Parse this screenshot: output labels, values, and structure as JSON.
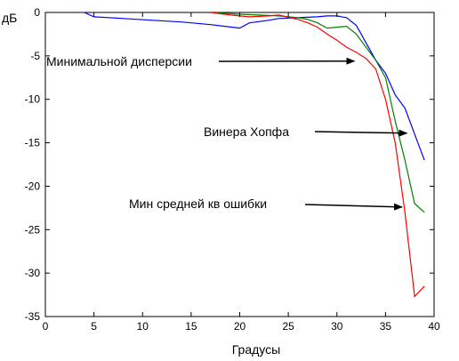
{
  "chart_data": {
    "type": "line",
    "title": "",
    "xlabel": "Градусы",
    "ylabel": "дБ",
    "xlim": [
      0,
      40
    ],
    "ylim": [
      -35,
      0
    ],
    "xticks": [
      0,
      5,
      10,
      15,
      20,
      25,
      30,
      35,
      40
    ],
    "yticks": [
      0,
      -5,
      -10,
      -15,
      -20,
      -25,
      -30,
      -35
    ],
    "grid": false,
    "series": [
      {
        "name": "Минимальной дисперсии",
        "color": "#0000ff",
        "x": [
          4,
          5,
          8,
          11,
          14,
          17,
          20,
          21,
          23,
          24,
          26,
          28,
          29,
          30,
          31,
          32,
          33,
          34,
          35,
          36,
          37,
          38,
          39
        ],
        "y": [
          0,
          -0.5,
          -0.7,
          -0.9,
          -1.1,
          -1.4,
          -1.8,
          -1.2,
          -0.9,
          -0.7,
          -0.6,
          -0.5,
          -0.4,
          -0.4,
          -0.6,
          -1.5,
          -3.5,
          -5.5,
          -7.0,
          -9.5,
          -11.0,
          -14.0,
          -17.0
        ]
      },
      {
        "name": "Винера Хопфа",
        "color": "#008000",
        "x": [
          17,
          20,
          22,
          24,
          26,
          27,
          28,
          29,
          30,
          31,
          32,
          33,
          34,
          35,
          36,
          37,
          38,
          39
        ],
        "y": [
          0,
          -0.2,
          -0.3,
          -0.4,
          -0.6,
          -0.8,
          -1.2,
          -1.8,
          -1.7,
          -1.6,
          -2.5,
          -4.0,
          -5.5,
          -7.5,
          -12.5,
          -17.0,
          -22.0,
          -23.0
        ]
      },
      {
        "name": "Мин средней кв ошибки",
        "color": "#ff0000",
        "x": [
          17,
          19,
          21,
          23,
          24,
          26,
          27,
          28,
          29,
          30,
          31,
          32,
          33,
          34,
          35,
          36,
          37,
          38,
          39
        ],
        "y": [
          0,
          -0.3,
          -0.5,
          -0.4,
          -0.3,
          -0.8,
          -1.2,
          -1.7,
          -2.5,
          -3.2,
          -4.0,
          -4.6,
          -5.3,
          -6.5,
          -10.0,
          -15.0,
          -23.0,
          -32.7,
          -31.5
        ]
      }
    ],
    "annotations": [
      {
        "text": "Минимальной дисперсии",
        "arrow_to": [
          31.8,
          -5.6
        ]
      },
      {
        "text": "Винера Хопфа",
        "arrow_to": [
          37.2,
          -13.9
        ]
      },
      {
        "text": "Мин средней кв ошибки",
        "arrow_to": [
          36.7,
          -22.4
        ]
      }
    ]
  }
}
